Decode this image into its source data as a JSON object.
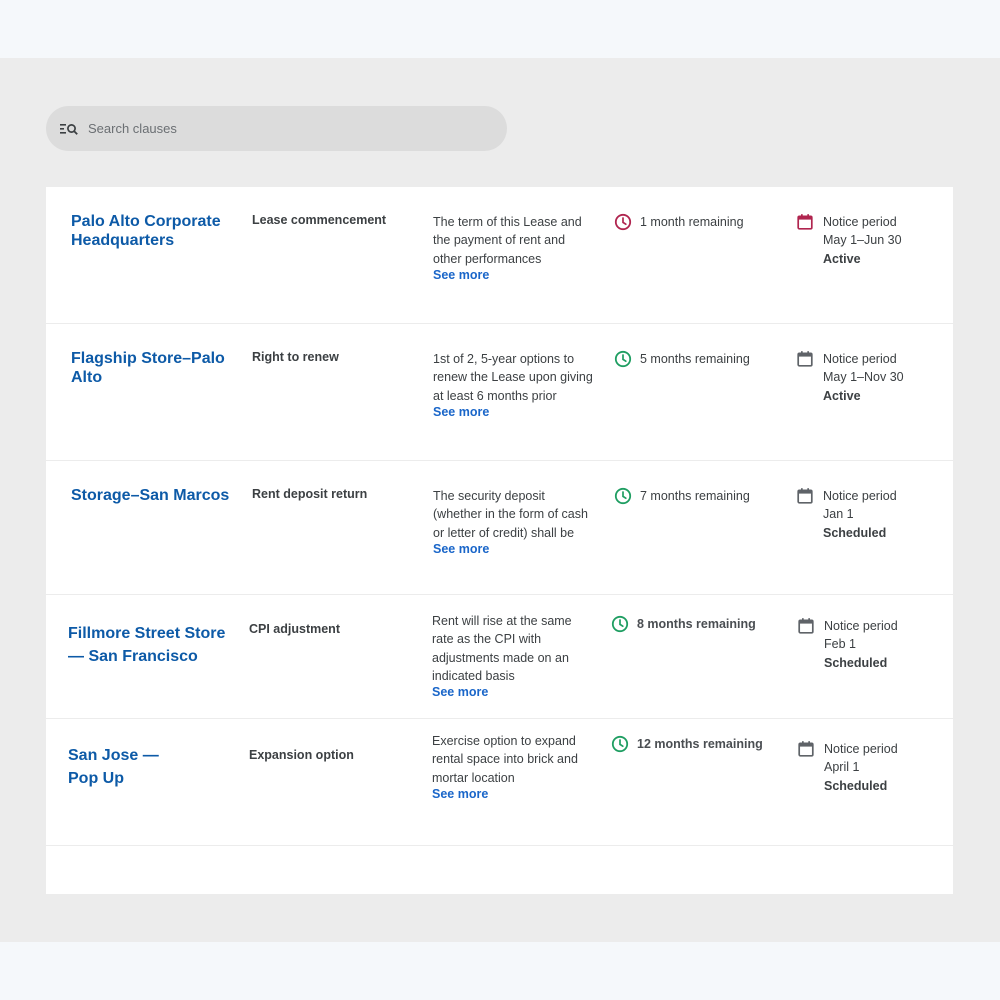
{
  "search": {
    "placeholder": "Search clauses"
  },
  "colors": {
    "accent": "#0d5aa7",
    "link": "#1a66c9",
    "warning": "#b0254f",
    "ok": "#1f9e62"
  },
  "rows": [
    {
      "location": "Palo Alto Corporate Headquarters",
      "clause": "Lease commencement",
      "description": "The term of this Lease and the payment of rent and other performances",
      "see_more": "See more",
      "time_remaining": "1 month remaining",
      "clock_icon": "clock-icon-red",
      "notice_label": "Notice period",
      "notice_dates": "May 1–Jun 30",
      "status": "Active"
    },
    {
      "location": "Flagship Store–Palo Alto",
      "clause": "Right to renew",
      "description": "1st of 2, 5-year options to renew the Lease upon giving at least 6 months prior",
      "see_more": "See more",
      "time_remaining": "5 months remaining",
      "clock_icon": "clock-icon-green",
      "notice_label": "Notice period",
      "notice_dates": "May 1–Nov 30",
      "status": "Active"
    },
    {
      "location": "Storage–San Marcos",
      "clause": "Rent deposit return",
      "description": "The security deposit (whether in the form of cash or letter of credit) shall be",
      "see_more": "See more",
      "time_remaining": "7 months remaining",
      "clock_icon": "clock-icon-green",
      "notice_label": "Notice period",
      "notice_dates": "Jan 1",
      "status": "Scheduled"
    },
    {
      "location": "Fillmore Street Store — San Francisco",
      "clause": "CPI adjustment",
      "description": "Rent will rise at the same rate as the CPI with adjustments made on an indicated basis",
      "see_more": "See more",
      "time_remaining": "8 months remaining",
      "clock_icon": "clock-icon-green",
      "notice_label": "Notice period",
      "notice_dates": "Feb 1",
      "status": "Scheduled"
    },
    {
      "location": "San Jose — Pop Up",
      "clause": "Expansion option",
      "description": "Exercise option to expand rental space into brick and mortar location",
      "see_more": "See more",
      "time_remaining": "12 months remaining",
      "clock_icon": "clock-icon-green",
      "notice_label": "Notice period",
      "notice_dates": "April 1",
      "status": "Scheduled"
    }
  ]
}
